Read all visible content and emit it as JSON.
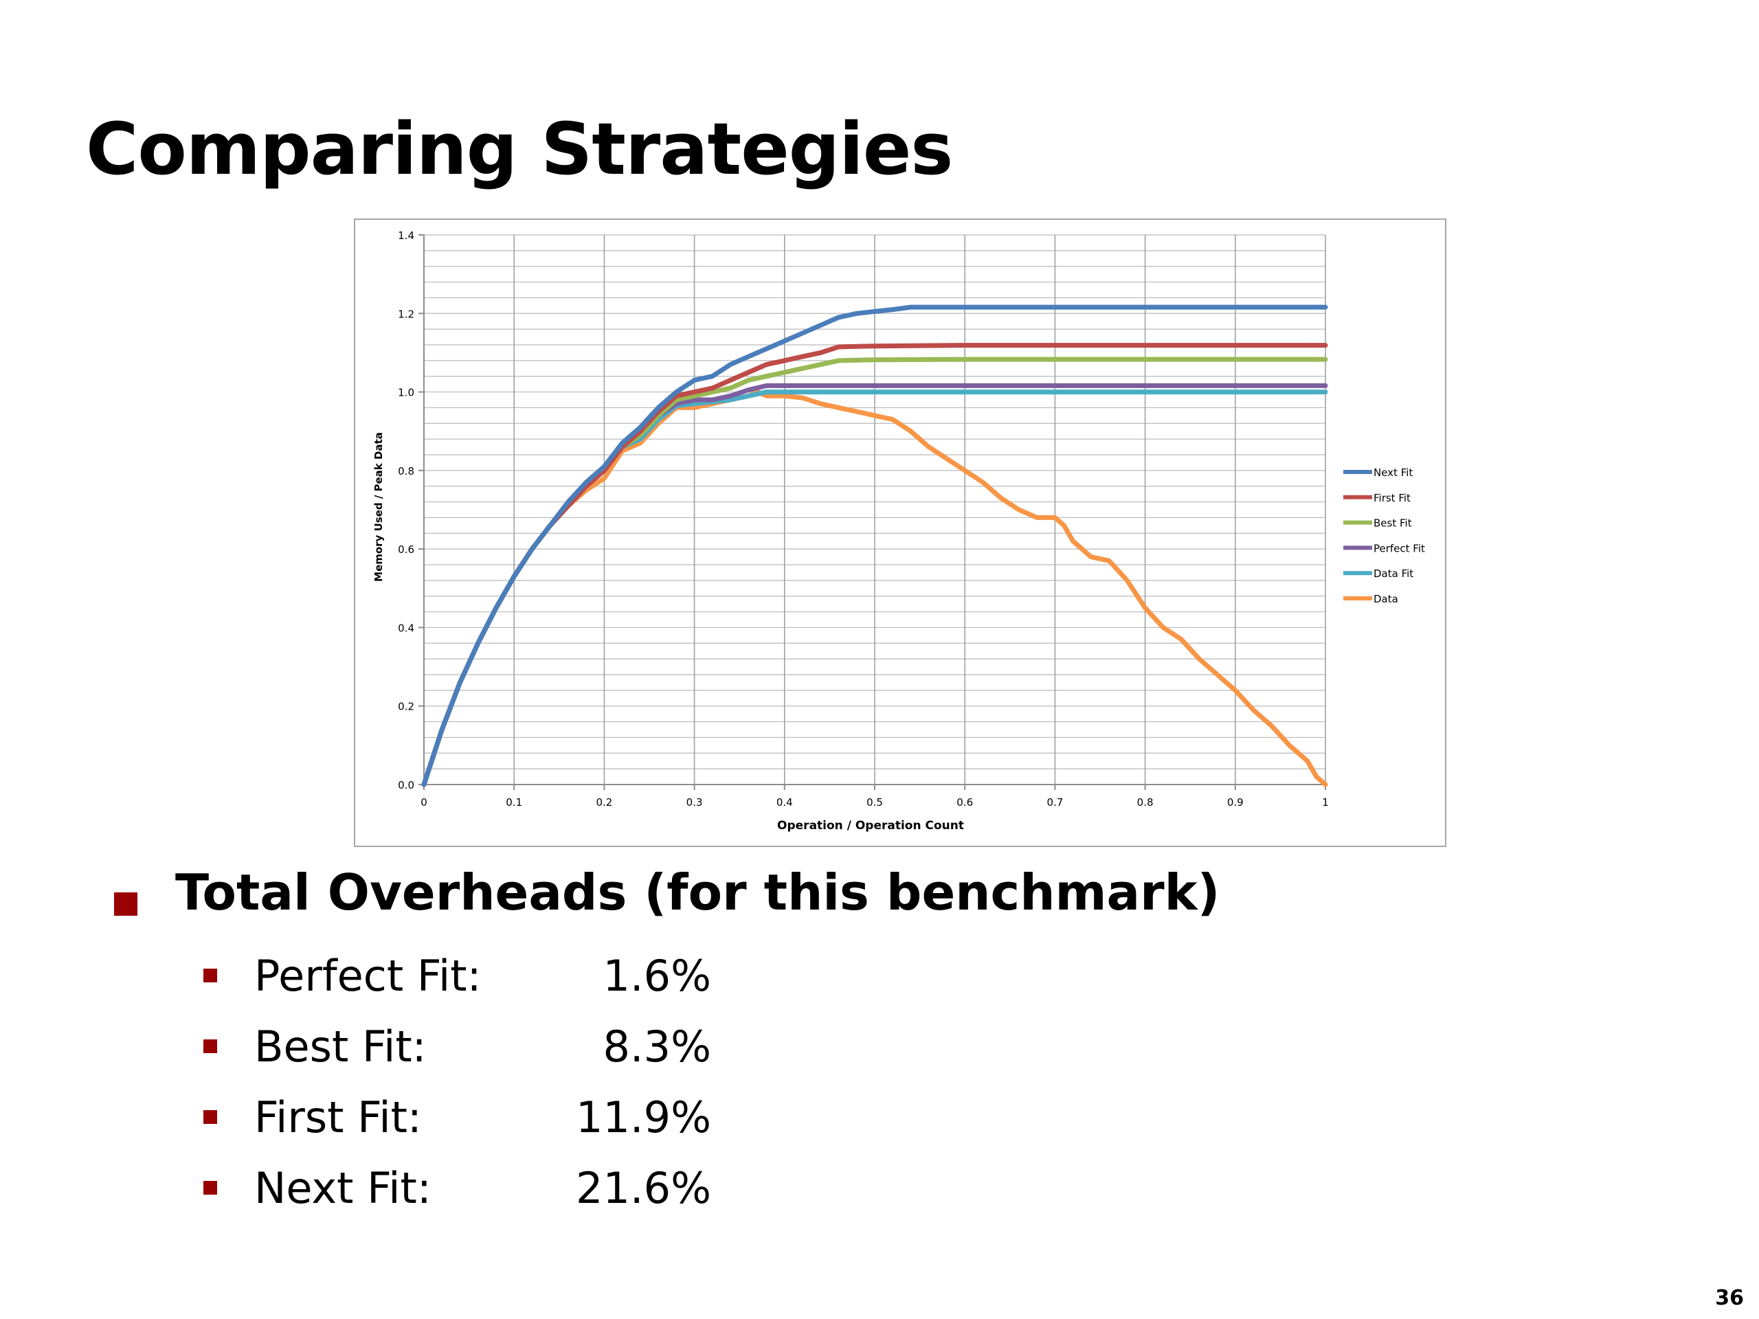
{
  "slide": {
    "title": "Comparing Strategies",
    "page_number": "36"
  },
  "overheads": {
    "heading": "Total Overheads (for this benchmark)",
    "items": [
      {
        "label": "Perfect Fit:",
        "value": "1.6%"
      },
      {
        "label": "Best Fit:",
        "value": "8.3%"
      },
      {
        "label": "First Fit:",
        "value": "11.9%"
      },
      {
        "label": "Next Fit:",
        "value": "21.6%"
      }
    ]
  },
  "chart_data": {
    "type": "line",
    "title": "",
    "xlabel": "Operation / Operation Count",
    "ylabel": "Memory Used / Peak Data",
    "xlim": [
      0,
      1
    ],
    "ylim": [
      0,
      1.4
    ],
    "x_ticks": [
      "0",
      "0.1",
      "0.2",
      "0.3",
      "0.4",
      "0.5",
      "0.6",
      "0.7",
      "0.8",
      "0.9",
      "1"
    ],
    "y_ticks": [
      "0.0",
      "0.2",
      "0.4",
      "0.6",
      "0.8",
      "1.0",
      "1.2",
      "1.4"
    ],
    "grid": true,
    "legend_position": "right",
    "series": [
      {
        "name": "Next Fit",
        "color": "#4a7ebb",
        "points": [
          [
            0,
            0
          ],
          [
            0.02,
            0.14
          ],
          [
            0.04,
            0.26
          ],
          [
            0.06,
            0.36
          ],
          [
            0.08,
            0.45
          ],
          [
            0.1,
            0.53
          ],
          [
            0.12,
            0.6
          ],
          [
            0.14,
            0.66
          ],
          [
            0.16,
            0.72
          ],
          [
            0.18,
            0.77
          ],
          [
            0.2,
            0.81
          ],
          [
            0.22,
            0.87
          ],
          [
            0.24,
            0.91
          ],
          [
            0.26,
            0.96
          ],
          [
            0.28,
            1.0
          ],
          [
            0.3,
            1.03
          ],
          [
            0.32,
            1.04
          ],
          [
            0.34,
            1.07
          ],
          [
            0.36,
            1.09
          ],
          [
            0.38,
            1.11
          ],
          [
            0.4,
            1.13
          ],
          [
            0.42,
            1.15
          ],
          [
            0.44,
            1.17
          ],
          [
            0.46,
            1.19
          ],
          [
            0.48,
            1.2
          ],
          [
            0.5,
            1.205
          ],
          [
            0.52,
            1.21
          ],
          [
            0.54,
            1.216
          ],
          [
            0.6,
            1.216
          ],
          [
            0.7,
            1.216
          ],
          [
            0.8,
            1.216
          ],
          [
            0.9,
            1.216
          ],
          [
            1.0,
            1.216
          ]
        ]
      },
      {
        "name": "First Fit",
        "color": "#be4b48",
        "points": [
          [
            0,
            0
          ],
          [
            0.02,
            0.14
          ],
          [
            0.04,
            0.26
          ],
          [
            0.06,
            0.36
          ],
          [
            0.08,
            0.45
          ],
          [
            0.1,
            0.53
          ],
          [
            0.12,
            0.6
          ],
          [
            0.14,
            0.66
          ],
          [
            0.16,
            0.71
          ],
          [
            0.18,
            0.76
          ],
          [
            0.2,
            0.8
          ],
          [
            0.22,
            0.86
          ],
          [
            0.24,
            0.9
          ],
          [
            0.26,
            0.95
          ],
          [
            0.28,
            0.99
          ],
          [
            0.3,
            1.0
          ],
          [
            0.32,
            1.01
          ],
          [
            0.34,
            1.03
          ],
          [
            0.36,
            1.05
          ],
          [
            0.38,
            1.07
          ],
          [
            0.4,
            1.08
          ],
          [
            0.42,
            1.09
          ],
          [
            0.44,
            1.1
          ],
          [
            0.46,
            1.115
          ],
          [
            0.5,
            1.117
          ],
          [
            0.6,
            1.119
          ],
          [
            0.7,
            1.119
          ],
          [
            0.8,
            1.119
          ],
          [
            0.9,
            1.119
          ],
          [
            1.0,
            1.119
          ]
        ]
      },
      {
        "name": "Best Fit",
        "color": "#98b954",
        "points": [
          [
            0,
            0
          ],
          [
            0.02,
            0.14
          ],
          [
            0.04,
            0.26
          ],
          [
            0.06,
            0.36
          ],
          [
            0.08,
            0.45
          ],
          [
            0.1,
            0.53
          ],
          [
            0.12,
            0.6
          ],
          [
            0.14,
            0.66
          ],
          [
            0.16,
            0.71
          ],
          [
            0.18,
            0.76
          ],
          [
            0.2,
            0.8
          ],
          [
            0.22,
            0.86
          ],
          [
            0.24,
            0.89
          ],
          [
            0.26,
            0.94
          ],
          [
            0.28,
            0.98
          ],
          [
            0.3,
            0.99
          ],
          [
            0.32,
            1.0
          ],
          [
            0.34,
            1.01
          ],
          [
            0.36,
            1.03
          ],
          [
            0.38,
            1.04
          ],
          [
            0.4,
            1.05
          ],
          [
            0.42,
            1.06
          ],
          [
            0.44,
            1.07
          ],
          [
            0.46,
            1.08
          ],
          [
            0.5,
            1.082
          ],
          [
            0.6,
            1.083
          ],
          [
            0.7,
            1.083
          ],
          [
            0.8,
            1.083
          ],
          [
            0.9,
            1.083
          ],
          [
            1.0,
            1.083
          ]
        ]
      },
      {
        "name": "Perfect Fit",
        "color": "#7d5fa0",
        "points": [
          [
            0,
            0
          ],
          [
            0.02,
            0.14
          ],
          [
            0.04,
            0.26
          ],
          [
            0.06,
            0.36
          ],
          [
            0.08,
            0.45
          ],
          [
            0.1,
            0.53
          ],
          [
            0.12,
            0.6
          ],
          [
            0.14,
            0.66
          ],
          [
            0.16,
            0.71
          ],
          [
            0.18,
            0.76
          ],
          [
            0.2,
            0.8
          ],
          [
            0.22,
            0.86
          ],
          [
            0.24,
            0.89
          ],
          [
            0.26,
            0.94
          ],
          [
            0.28,
            0.97
          ],
          [
            0.3,
            0.98
          ],
          [
            0.32,
            0.98
          ],
          [
            0.34,
            0.99
          ],
          [
            0.36,
            1.005
          ],
          [
            0.38,
            1.016
          ],
          [
            0.4,
            1.016
          ],
          [
            0.5,
            1.016
          ],
          [
            0.6,
            1.016
          ],
          [
            0.7,
            1.016
          ],
          [
            0.8,
            1.016
          ],
          [
            0.9,
            1.016
          ],
          [
            1.0,
            1.016
          ]
        ]
      },
      {
        "name": "Data Fit",
        "color": "#4bacc6",
        "points": [
          [
            0,
            0
          ],
          [
            0.02,
            0.14
          ],
          [
            0.04,
            0.26
          ],
          [
            0.06,
            0.36
          ],
          [
            0.08,
            0.45
          ],
          [
            0.1,
            0.53
          ],
          [
            0.12,
            0.6
          ],
          [
            0.14,
            0.66
          ],
          [
            0.16,
            0.71
          ],
          [
            0.18,
            0.76
          ],
          [
            0.2,
            0.8
          ],
          [
            0.22,
            0.86
          ],
          [
            0.24,
            0.88
          ],
          [
            0.26,
            0.93
          ],
          [
            0.28,
            0.965
          ],
          [
            0.3,
            0.97
          ],
          [
            0.32,
            0.975
          ],
          [
            0.34,
            0.98
          ],
          [
            0.36,
            0.99
          ],
          [
            0.38,
            1.0
          ],
          [
            0.4,
            1.0
          ],
          [
            0.5,
            1.0
          ],
          [
            0.6,
            1.0
          ],
          [
            0.7,
            1.0
          ],
          [
            0.8,
            1.0
          ],
          [
            0.9,
            1.0
          ],
          [
            1.0,
            1.0
          ]
        ]
      },
      {
        "name": "Data",
        "color": "#f79646",
        "points": [
          [
            0,
            0
          ],
          [
            0.02,
            0.14
          ],
          [
            0.04,
            0.26
          ],
          [
            0.06,
            0.36
          ],
          [
            0.08,
            0.45
          ],
          [
            0.1,
            0.53
          ],
          [
            0.12,
            0.6
          ],
          [
            0.14,
            0.66
          ],
          [
            0.16,
            0.71
          ],
          [
            0.18,
            0.75
          ],
          [
            0.2,
            0.78
          ],
          [
            0.22,
            0.85
          ],
          [
            0.24,
            0.87
          ],
          [
            0.26,
            0.92
          ],
          [
            0.28,
            0.96
          ],
          [
            0.3,
            0.96
          ],
          [
            0.32,
            0.97
          ],
          [
            0.34,
            0.98
          ],
          [
            0.36,
            0.99
          ],
          [
            0.37,
            1.0
          ],
          [
            0.38,
            0.99
          ],
          [
            0.4,
            0.99
          ],
          [
            0.42,
            0.985
          ],
          [
            0.44,
            0.97
          ],
          [
            0.46,
            0.96
          ],
          [
            0.48,
            0.95
          ],
          [
            0.5,
            0.94
          ],
          [
            0.52,
            0.93
          ],
          [
            0.54,
            0.9
          ],
          [
            0.56,
            0.86
          ],
          [
            0.58,
            0.83
          ],
          [
            0.6,
            0.8
          ],
          [
            0.62,
            0.77
          ],
          [
            0.64,
            0.73
          ],
          [
            0.66,
            0.7
          ],
          [
            0.68,
            0.68
          ],
          [
            0.7,
            0.68
          ],
          [
            0.71,
            0.66
          ],
          [
            0.72,
            0.62
          ],
          [
            0.74,
            0.58
          ],
          [
            0.76,
            0.57
          ],
          [
            0.78,
            0.52
          ],
          [
            0.8,
            0.45
          ],
          [
            0.82,
            0.4
          ],
          [
            0.84,
            0.37
          ],
          [
            0.86,
            0.32
          ],
          [
            0.88,
            0.28
          ],
          [
            0.9,
            0.24
          ],
          [
            0.92,
            0.19
          ],
          [
            0.94,
            0.15
          ],
          [
            0.96,
            0.1
          ],
          [
            0.98,
            0.06
          ],
          [
            0.99,
            0.02
          ],
          [
            1.0,
            0.0
          ]
        ]
      }
    ]
  }
}
